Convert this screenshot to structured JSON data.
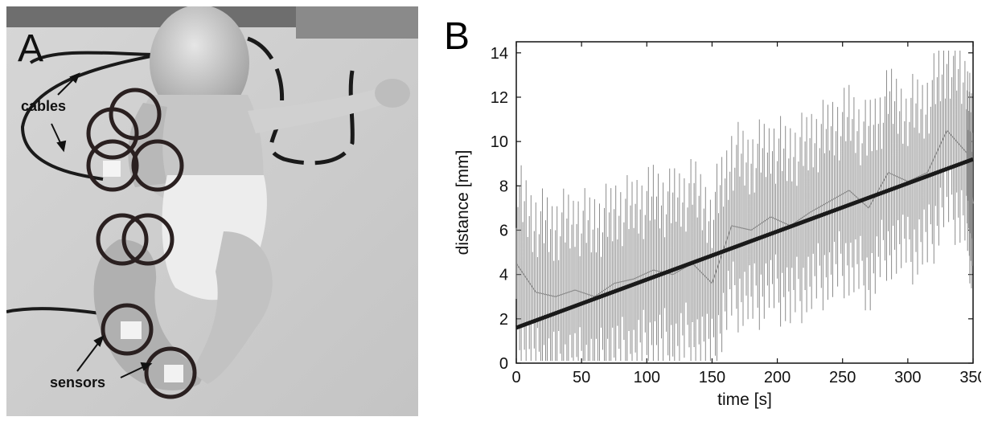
{
  "panel_a": {
    "label": "A",
    "annotations": {
      "cables": "cables",
      "sensors": "sensors"
    }
  },
  "panel_b": {
    "label": "B"
  },
  "chart_data": {
    "type": "line",
    "xlabel": "time [s]",
    "ylabel": "distance [mm]",
    "xlim": [
      0,
      350
    ],
    "ylim": [
      0,
      14.5
    ],
    "xticks": [
      0,
      50,
      100,
      150,
      200,
      250,
      300,
      350
    ],
    "yticks": [
      0,
      2,
      4,
      6,
      8,
      10,
      12,
      14
    ],
    "grid": false,
    "series": [
      {
        "style": "raw",
        "color": "#8c8c8c",
        "x": [
          0,
          15,
          30,
          45,
          60,
          75,
          90,
          105,
          120,
          135,
          150,
          165,
          180,
          195,
          210,
          225,
          240,
          255,
          270,
          285,
          300,
          315,
          330,
          345,
          350
        ],
        "y": [
          4.5,
          3.2,
          3.0,
          3.3,
          3.0,
          3.6,
          3.8,
          4.2,
          4.0,
          4.5,
          3.6,
          6.2,
          6.0,
          6.6,
          6.2,
          6.8,
          7.3,
          7.8,
          7.0,
          8.6,
          8.2,
          8.6,
          10.5,
          9.5,
          7.2
        ]
      },
      {
        "style": "trend",
        "color": "#1a1a1a",
        "x": [
          0,
          350
        ],
        "y": [
          1.6,
          9.2
        ]
      }
    ]
  }
}
